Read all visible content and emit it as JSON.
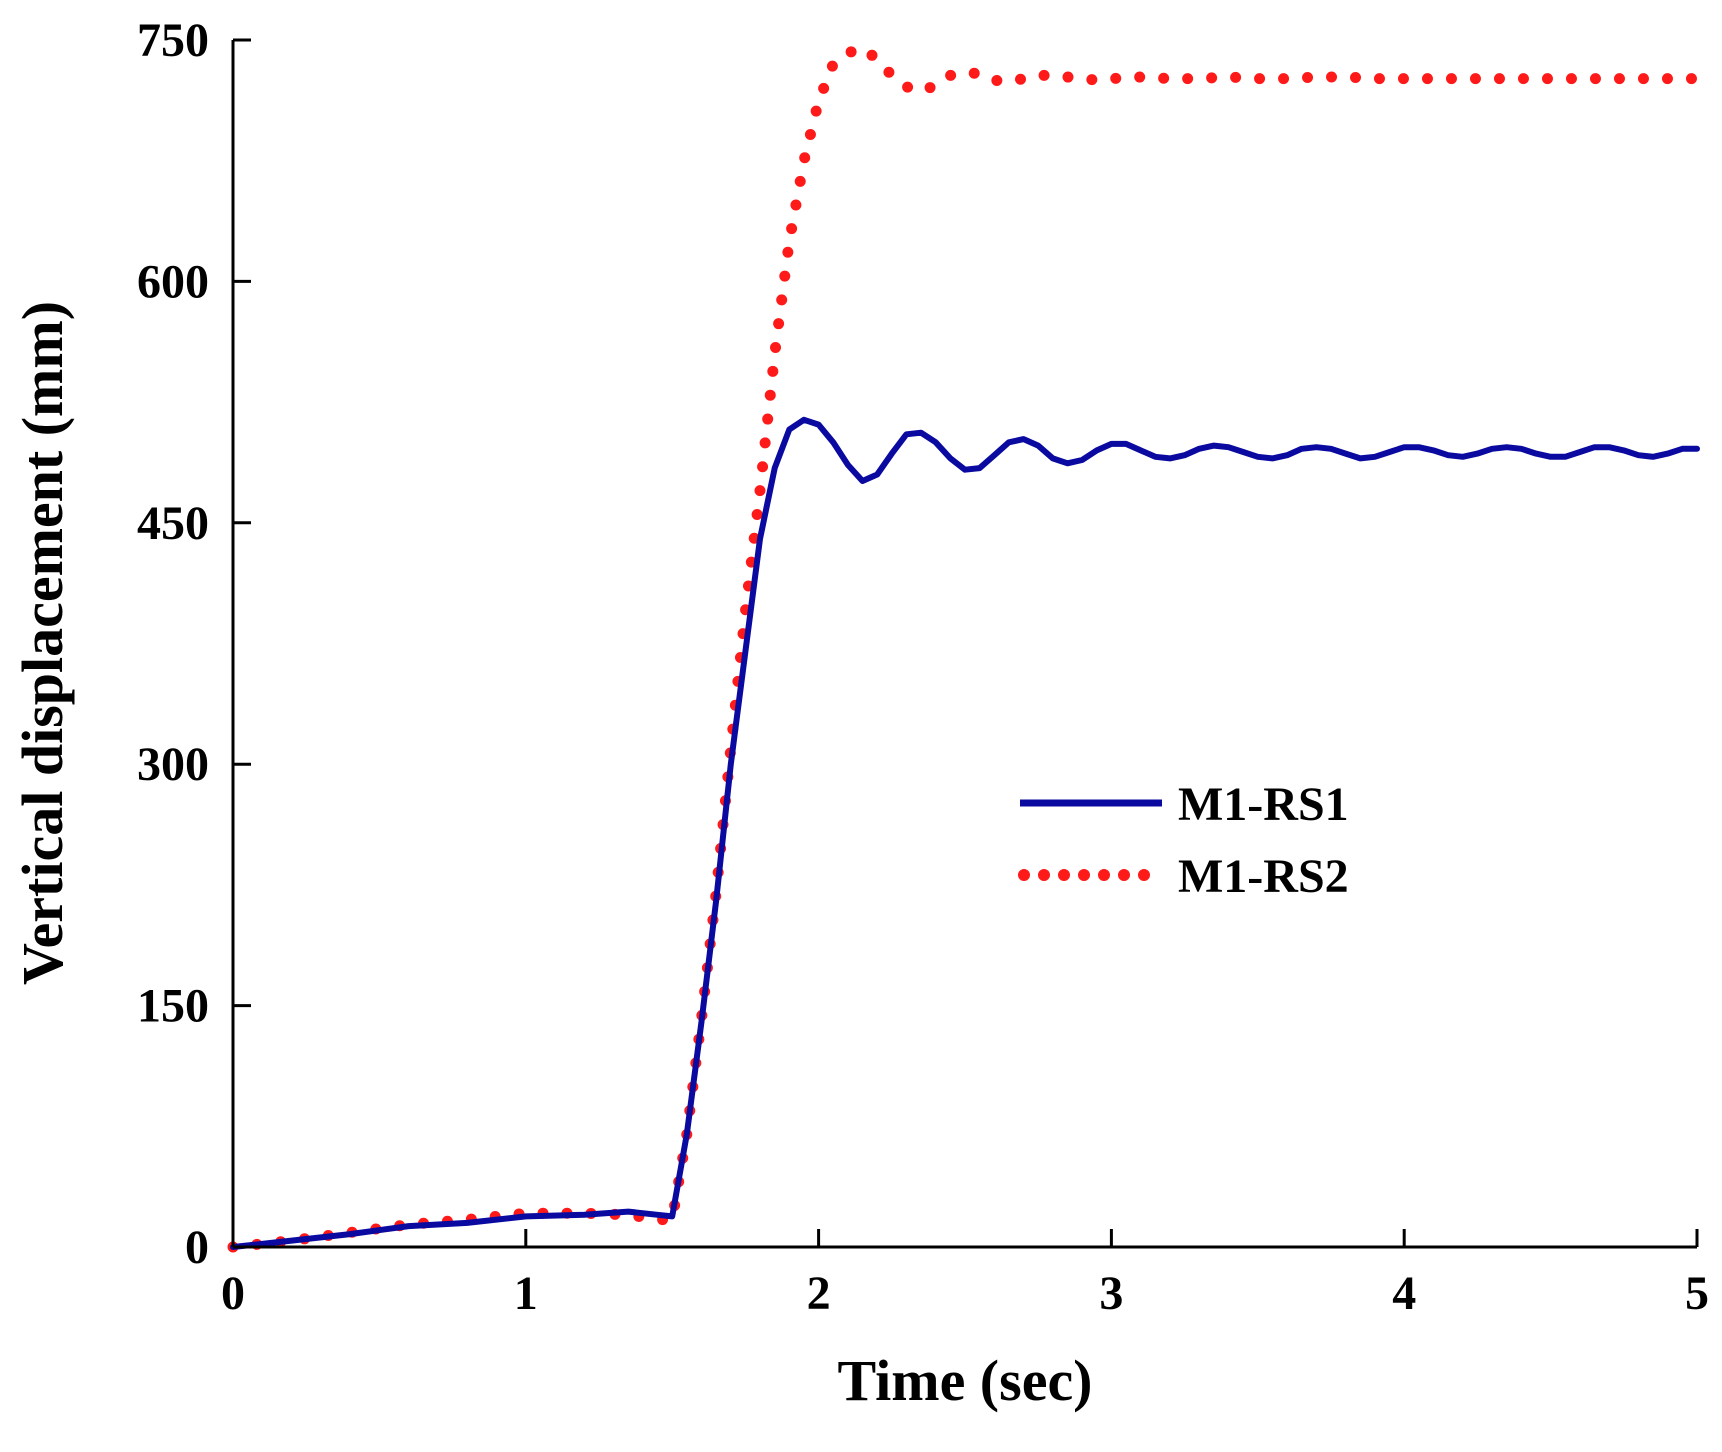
{
  "chart_data": {
    "type": "line",
    "title": "",
    "xlabel": "Time (sec)",
    "ylabel": "Vertical displacement (mm)",
    "xlim": [
      0,
      5
    ],
    "ylim": [
      0,
      750
    ],
    "xticks": [
      0,
      1,
      2,
      3,
      4,
      5
    ],
    "yticks": [
      0,
      150,
      300,
      450,
      600,
      750
    ],
    "xtick_labels": [
      "0",
      "1",
      "2",
      "3",
      "4",
      "5"
    ],
    "ytick_labels": [
      "0",
      "150",
      "300",
      "450",
      "600",
      "750"
    ],
    "grid": false,
    "legend_position": "center-right",
    "series": [
      {
        "name": "M1-RS1",
        "style": "solid",
        "color": "#0a0aa0",
        "x": [
          0,
          0.2,
          0.4,
          0.6,
          0.8,
          1.0,
          1.2,
          1.35,
          1.45,
          1.5,
          1.55,
          1.6,
          1.65,
          1.7,
          1.75,
          1.8,
          1.85,
          1.9,
          1.95,
          2.0,
          2.05,
          2.1,
          2.15,
          2.2,
          2.25,
          2.3,
          2.35,
          2.4,
          2.45,
          2.5,
          2.55,
          2.6,
          2.65,
          2.7,
          2.75,
          2.8,
          2.85,
          2.9,
          2.95,
          3.0,
          3.05,
          3.1,
          3.15,
          3.2,
          3.25,
          3.3,
          3.35,
          3.4,
          3.45,
          3.5,
          3.55,
          3.6,
          3.65,
          3.7,
          3.75,
          3.8,
          3.85,
          3.9,
          3.95,
          4.0,
          4.05,
          4.1,
          4.15,
          4.2,
          4.25,
          4.3,
          4.35,
          4.4,
          4.45,
          4.5,
          4.55,
          4.6,
          4.65,
          4.7,
          4.75,
          4.8,
          4.85,
          4.9,
          4.95,
          5.0
        ],
        "values": [
          0,
          4,
          8,
          13,
          15,
          19,
          20,
          22,
          20,
          19,
          70,
          140,
          215,
          300,
          370,
          440,
          484,
          508,
          514,
          511,
          500,
          486,
          476,
          480,
          493,
          505,
          506,
          500,
          490,
          483,
          484,
          492,
          500,
          502,
          498,
          490,
          487,
          489,
          495,
          499,
          499,
          495,
          491,
          490,
          492,
          496,
          498,
          497,
          494,
          491,
          490,
          492,
          496,
          497,
          496,
          493,
          490,
          491,
          494,
          497,
          497,
          495,
          492,
          491,
          493,
          496,
          497,
          496,
          493,
          491,
          491,
          494,
          497,
          497,
          495,
          492,
          491,
          493,
          496,
          496
        ]
      },
      {
        "name": "M1-RS2",
        "style": "dotted",
        "color": "#ff1a1a",
        "x": [
          0,
          0.2,
          0.4,
          0.6,
          0.8,
          1.0,
          1.2,
          1.35,
          1.45,
          1.5,
          1.55,
          1.6,
          1.65,
          1.7,
          1.75,
          1.8,
          1.85,
          1.9,
          1.95,
          2.0,
          2.05,
          2.1,
          2.15,
          2.2,
          2.25,
          2.3,
          2.35,
          2.4,
          2.45,
          2.5,
          2.55,
          2.6,
          2.65,
          2.7,
          2.75,
          2.8,
          2.85,
          2.9,
          2.95,
          3.0,
          3.1,
          3.2,
          3.3,
          3.4,
          3.5,
          3.6,
          3.7,
          3.8,
          3.9,
          4.0,
          4.1,
          4.2,
          4.3,
          4.4,
          4.5,
          4.6,
          4.7,
          4.8,
          4.9,
          5.0
        ],
        "values": [
          0,
          4,
          9,
          14,
          17,
          21,
          21,
          20,
          17,
          17,
          70,
          142,
          220,
          310,
          395,
          470,
          555,
          625,
          675,
          712,
          735,
          742,
          745,
          738,
          728,
          721,
          718,
          722,
          728,
          730,
          729,
          725,
          724,
          726,
          728,
          728,
          727,
          726,
          725,
          726,
          727,
          726,
          726,
          727,
          726,
          726,
          727,
          727,
          726,
          726,
          726,
          726,
          726,
          726,
          726,
          726,
          726,
          726,
          726,
          726
        ]
      }
    ]
  }
}
